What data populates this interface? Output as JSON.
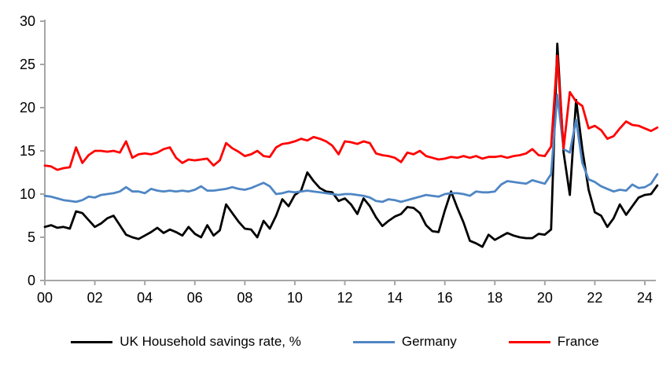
{
  "chart_data": {
    "type": "line",
    "title": "",
    "xlabel": "",
    "ylabel": "",
    "x_start_year": 2000,
    "x_step_years": 0.25,
    "x_axis_span_years": 24,
    "x_tick_labels": [
      "00",
      "02",
      "04",
      "06",
      "08",
      "10",
      "12",
      "14",
      "16",
      "18",
      "20",
      "22",
      "24"
    ],
    "x_tick_interval_years": 2,
    "y_ticks": [
      0,
      5,
      10,
      15,
      20,
      25,
      30
    ],
    "ylim": [
      0,
      30
    ],
    "grid": "off",
    "legend_position": "bottom",
    "axis_color": "#a6a6a6",
    "tick_label_color": "#000000",
    "series": [
      {
        "name": "UK Household savings rate, %",
        "color": "#000000",
        "values": [
          6.2,
          6.4,
          6.1,
          6.2,
          6.0,
          8.0,
          7.8,
          7.0,
          6.2,
          6.6,
          7.2,
          7.5,
          6.4,
          5.3,
          5.0,
          4.8,
          5.2,
          5.6,
          6.1,
          5.5,
          5.9,
          5.6,
          5.2,
          6.2,
          5.4,
          5.0,
          6.4,
          5.2,
          5.8,
          8.8,
          7.8,
          6.8,
          6.0,
          5.9,
          5.0,
          6.9,
          6.0,
          7.5,
          9.4,
          8.6,
          9.9,
          10.4,
          12.5,
          11.5,
          10.7,
          10.3,
          10.2,
          9.2,
          9.5,
          8.8,
          7.7,
          9.5,
          8.6,
          7.3,
          6.3,
          6.9,
          7.4,
          7.7,
          8.5,
          8.4,
          7.8,
          6.4,
          5.7,
          5.6,
          8.1,
          10.3,
          8.4,
          6.7,
          4.6,
          4.3,
          3.9,
          5.3,
          4.7,
          5.1,
          5.5,
          5.2,
          5.0,
          4.9,
          4.9,
          5.4,
          5.3,
          5.9,
          27.4,
          14.8,
          9.9,
          20.9,
          15.2,
          10.5,
          7.9,
          7.5,
          6.2,
          7.2,
          8.8,
          7.6,
          8.6,
          9.6,
          9.9,
          10.0,
          11.0
        ]
      },
      {
        "name": "Germany",
        "color": "#4f86c4",
        "values": [
          9.8,
          9.7,
          9.5,
          9.3,
          9.2,
          9.1,
          9.3,
          9.7,
          9.6,
          9.9,
          10.0,
          10.1,
          10.3,
          10.8,
          10.3,
          10.3,
          10.1,
          10.6,
          10.4,
          10.3,
          10.4,
          10.3,
          10.4,
          10.3,
          10.5,
          10.9,
          10.4,
          10.4,
          10.5,
          10.6,
          10.8,
          10.6,
          10.5,
          10.7,
          11.0,
          11.3,
          10.9,
          10.0,
          10.1,
          10.3,
          10.2,
          10.3,
          10.4,
          10.3,
          10.2,
          10.1,
          10.0,
          9.9,
          10.0,
          10.0,
          9.9,
          9.8,
          9.6,
          9.2,
          9.1,
          9.4,
          9.3,
          9.1,
          9.3,
          9.5,
          9.7,
          9.9,
          9.8,
          9.7,
          10.0,
          10.1,
          10.1,
          10.0,
          9.8,
          10.3,
          10.2,
          10.2,
          10.3,
          11.1,
          11.5,
          11.4,
          11.3,
          11.2,
          11.6,
          11.4,
          11.2,
          12.3,
          21.5,
          15.2,
          14.8,
          18.6,
          13.6,
          11.7,
          11.4,
          10.9,
          10.6,
          10.3,
          10.5,
          10.4,
          11.1,
          10.7,
          10.8,
          11.2,
          12.3
        ]
      },
      {
        "name": "France",
        "color": "#ff0000",
        "values": [
          13.3,
          13.2,
          12.8,
          13.0,
          13.1,
          15.4,
          13.6,
          14.5,
          15.0,
          15.0,
          14.9,
          15.0,
          14.8,
          16.1,
          14.2,
          14.6,
          14.7,
          14.6,
          14.8,
          15.2,
          15.4,
          14.2,
          13.6,
          14.0,
          13.9,
          14.0,
          14.1,
          13.3,
          13.9,
          15.9,
          15.3,
          14.9,
          14.4,
          14.6,
          15.0,
          14.4,
          14.3,
          15.4,
          15.8,
          15.9,
          16.1,
          16.4,
          16.2,
          16.6,
          16.4,
          16.1,
          15.6,
          14.6,
          16.1,
          16.0,
          15.8,
          16.1,
          15.9,
          14.7,
          14.5,
          14.4,
          14.2,
          13.7,
          14.8,
          14.6,
          15.0,
          14.4,
          14.2,
          14.0,
          14.1,
          14.3,
          14.2,
          14.4,
          14.2,
          14.4,
          14.1,
          14.3,
          14.3,
          14.4,
          14.2,
          14.4,
          14.5,
          14.7,
          15.2,
          14.5,
          14.4,
          15.5,
          26.0,
          15.3,
          21.8,
          20.7,
          20.2,
          17.6,
          17.9,
          17.4,
          16.4,
          16.7,
          17.6,
          18.4,
          18.0,
          17.9,
          17.6,
          17.3,
          17.7
        ]
      }
    ]
  }
}
